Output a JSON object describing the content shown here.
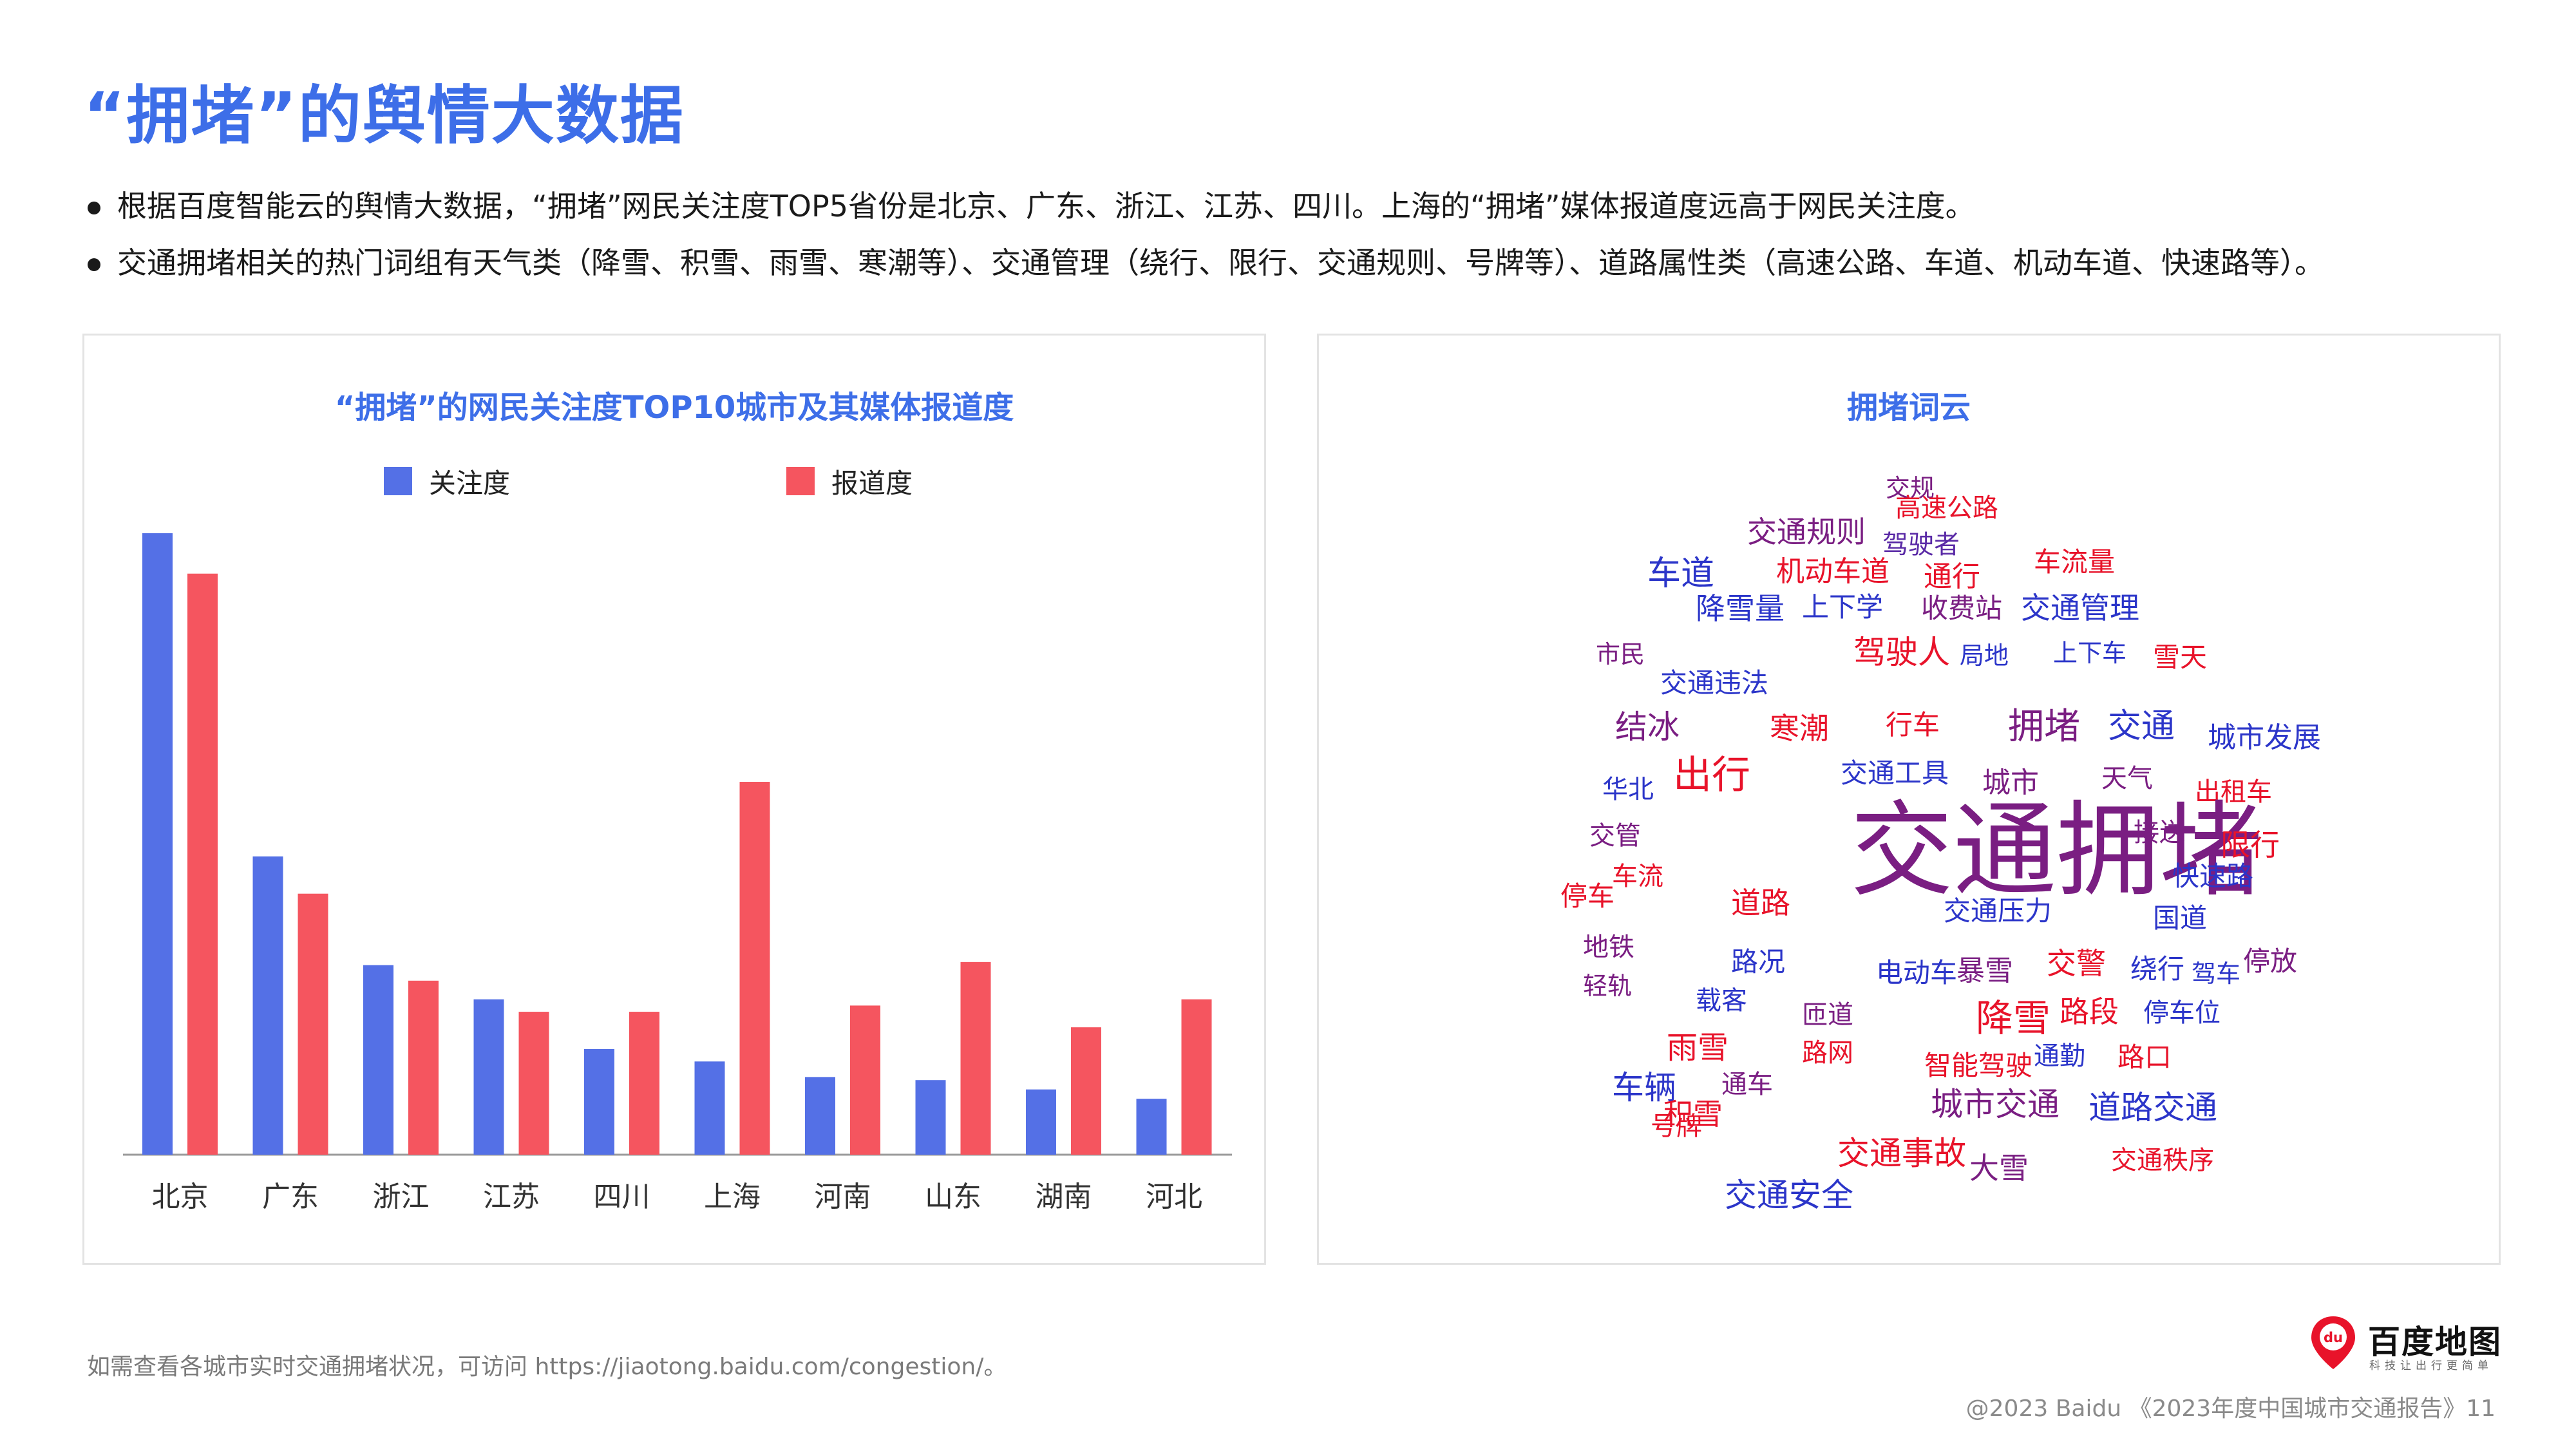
{
  "page": {
    "title": "“拥堵”的舆情大数据",
    "bullets": [
      "根据百度智能云的舆情大数据，“拥堵”网民关注度TOP5省份是北京、广东、浙江、江苏、四川。上海的“拥堵”媒体报道度远高于网民关注度。",
      "交通拥堵相关的热门词组有天气类（降雪、积雪、雨雪、寒潮等）、交通管理（绕行、限行、交通规则、号牌等）、道路属性类（高速公路、车道、机动车道、快速路等）。"
    ]
  },
  "chart_data": {
    "type": "bar",
    "title": "“拥堵”的网民关注度TOP10城市及其媒体报道度",
    "categories": [
      "北京",
      "广东",
      "浙江",
      "江苏",
      "四川",
      "上海",
      "河南",
      "山东",
      "湖南",
      "河北"
    ],
    "series": [
      {
        "name": "关注度",
        "color": "#5470e6",
        "values": [
          100,
          48,
          30.5,
          25,
          17,
          15,
          12.5,
          12,
          10.5,
          9
        ]
      },
      {
        "name": "报道度",
        "color": "#f5555f",
        "values": [
          93.5,
          42,
          28,
          23,
          23,
          60,
          24,
          31,
          20.5,
          25
        ]
      }
    ],
    "ylim": [
      0,
      100
    ],
    "grid": false,
    "legend": "top"
  },
  "wordcloud": {
    "title": "拥堵词云",
    "colors": {
      "purple": "#7a1e82",
      "blue": "#2b35c9",
      "red": "#e8132a",
      "violet": "#5a2aa6"
    },
    "words": [
      {
        "text": "交规",
        "color": "#7a1e82"
      },
      {
        "text": "高速公路",
        "color": "#e8132a"
      },
      {
        "text": "交通规则",
        "color": "#7a1e82"
      },
      {
        "text": "驾驶者",
        "color": "#5a2aa6"
      },
      {
        "text": "车道",
        "color": "#2b35c9"
      },
      {
        "text": "机动车道",
        "color": "#e8132a"
      },
      {
        "text": "通行",
        "color": "#e8132a"
      },
      {
        "text": "车流量",
        "color": "#e8132a"
      },
      {
        "text": "降雪量",
        "color": "#2b35c9"
      },
      {
        "text": "上下学",
        "color": "#2b35c9"
      },
      {
        "text": "收费站",
        "color": "#7a1e82"
      },
      {
        "text": "交通管理",
        "color": "#2b35c9"
      },
      {
        "text": "市民",
        "color": "#7a1e82"
      },
      {
        "text": "驾驶人",
        "color": "#e8132a"
      },
      {
        "text": "局地",
        "color": "#2b35c9"
      },
      {
        "text": "上下车",
        "color": "#2b35c9"
      },
      {
        "text": "雪天",
        "color": "#e8132a"
      },
      {
        "text": "交通违法",
        "color": "#2b35c9"
      },
      {
        "text": "结冰",
        "color": "#7a1e82"
      },
      {
        "text": "寒潮",
        "color": "#e8132a"
      },
      {
        "text": "行车",
        "color": "#e8132a"
      },
      {
        "text": "拥堵",
        "color": "#7a1e82"
      },
      {
        "text": "交通",
        "color": "#2b35c9"
      },
      {
        "text": "城市发展",
        "color": "#2b35c9"
      },
      {
        "text": "出行",
        "color": "#e8132a"
      },
      {
        "text": "交通工具",
        "color": "#2b35c9"
      },
      {
        "text": "城市",
        "color": "#7a1e82"
      },
      {
        "text": "天气",
        "color": "#7a1e82"
      },
      {
        "text": "华北",
        "color": "#2b35c9"
      },
      {
        "text": "出租车",
        "color": "#e8132a"
      },
      {
        "text": "交管",
        "color": "#7a1e82"
      },
      {
        "text": "交通拥堵",
        "color": "#7a1e82"
      },
      {
        "text": "接送",
        "color": "#7a1e82"
      },
      {
        "text": "限行",
        "color": "#e8132a"
      },
      {
        "text": "车流",
        "color": "#e8132a"
      },
      {
        "text": "快速路",
        "color": "#2b35c9"
      },
      {
        "text": "停车",
        "color": "#e8132a"
      },
      {
        "text": "道路",
        "color": "#e8132a"
      },
      {
        "text": "交通压力",
        "color": "#2b35c9"
      },
      {
        "text": "国道",
        "color": "#2b35c9"
      },
      {
        "text": "地铁",
        "color": "#7a1e82"
      },
      {
        "text": "路况",
        "color": "#2b35c9"
      },
      {
        "text": "电动车",
        "color": "#2b35c9"
      },
      {
        "text": "暴雪",
        "color": "#7a1e82"
      },
      {
        "text": "交警",
        "color": "#e8132a"
      },
      {
        "text": "绕行",
        "color": "#2b35c9"
      },
      {
        "text": "驾车",
        "color": "#2b35c9"
      },
      {
        "text": "停放",
        "color": "#7a1e82"
      },
      {
        "text": "轻轨",
        "color": "#7a1e82"
      },
      {
        "text": "载客",
        "color": "#2b35c9"
      },
      {
        "text": "匝道",
        "color": "#7a1e82"
      },
      {
        "text": "降雪",
        "color": "#e8132a"
      },
      {
        "text": "路段",
        "color": "#e8132a"
      },
      {
        "text": "停车位",
        "color": "#2b35c9"
      },
      {
        "text": "雨雪",
        "color": "#e8132a"
      },
      {
        "text": "路网",
        "color": "#e8132a"
      },
      {
        "text": "智能驾驶",
        "color": "#e8132a"
      },
      {
        "text": "通勤",
        "color": "#2b35c9"
      },
      {
        "text": "路口",
        "color": "#e8132a"
      },
      {
        "text": "车辆",
        "color": "#2b35c9"
      },
      {
        "text": "通车",
        "color": "#7a1e82"
      },
      {
        "text": "积雪",
        "color": "#e8132a"
      },
      {
        "text": "城市交通",
        "color": "#7a1e82"
      },
      {
        "text": "道路交通",
        "color": "#2b35c9"
      },
      {
        "text": "号牌",
        "color": "#e8132a"
      },
      {
        "text": "交通事故",
        "color": "#e8132a"
      },
      {
        "text": "大雪",
        "color": "#7a1e82"
      },
      {
        "text": "交通秩序",
        "color": "#e8132a"
      },
      {
        "text": "交通安全",
        "color": "#2b35c9"
      }
    ]
  },
  "footer": {
    "note": "如需查看各城市实时交通拥堵状况，可访问 https://jiaotong.baidu.com/congestion/。",
    "copyright": "@2023 Baidu 《2023年度中国城市交通报告》11",
    "logo_name": "百度地图",
    "logo_slogan": "科技让出行更简单",
    "logo_mark": "du"
  }
}
